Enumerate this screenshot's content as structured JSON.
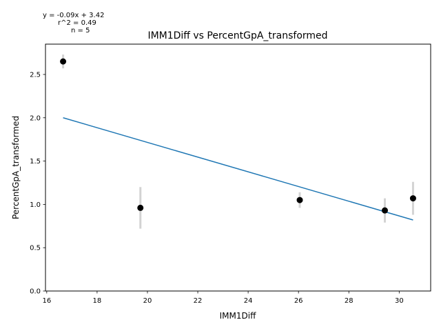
{
  "chart_data": {
    "type": "scatter",
    "title": "IMM1Diff vs PercentGpA_transformed",
    "xlabel": "IMM1Diff",
    "ylabel": "PercentGpA_transformed",
    "xlim": [
      15.95,
      31.25
    ],
    "ylim": [
      0.0,
      2.85
    ],
    "xticks": [
      16,
      18,
      20,
      22,
      24,
      26,
      28,
      30
    ],
    "yticks": [
      0.0,
      0.5,
      1.0,
      1.5,
      2.0,
      2.5
    ],
    "xtick_labels": [
      "16",
      "18",
      "20",
      "22",
      "24",
      "26",
      "28",
      "30"
    ],
    "ytick_labels": [
      "0.0",
      "0.5",
      "1.0",
      "1.5",
      "2.0",
      "2.5"
    ],
    "points": [
      {
        "x": 16.65,
        "y": 2.65,
        "err": 0.08
      },
      {
        "x": 19.72,
        "y": 0.96,
        "err": 0.24
      },
      {
        "x": 26.05,
        "y": 1.05,
        "err": 0.09
      },
      {
        "x": 29.43,
        "y": 0.93,
        "err": 0.14
      },
      {
        "x": 30.55,
        "y": 1.07,
        "err": 0.19
      }
    ],
    "fit": {
      "x": [
        16.65,
        30.55
      ],
      "y": [
        2.0,
        0.82
      ]
    },
    "annotations": {
      "equation": "y = -0.09x + 3.42",
      "r2": "r^2 = 0.49",
      "n": "n = 5"
    },
    "colors": {
      "points": "#000000",
      "errorbars": "#d3d3d3",
      "fit_line": "#1f77b4"
    },
    "grid": false
  }
}
